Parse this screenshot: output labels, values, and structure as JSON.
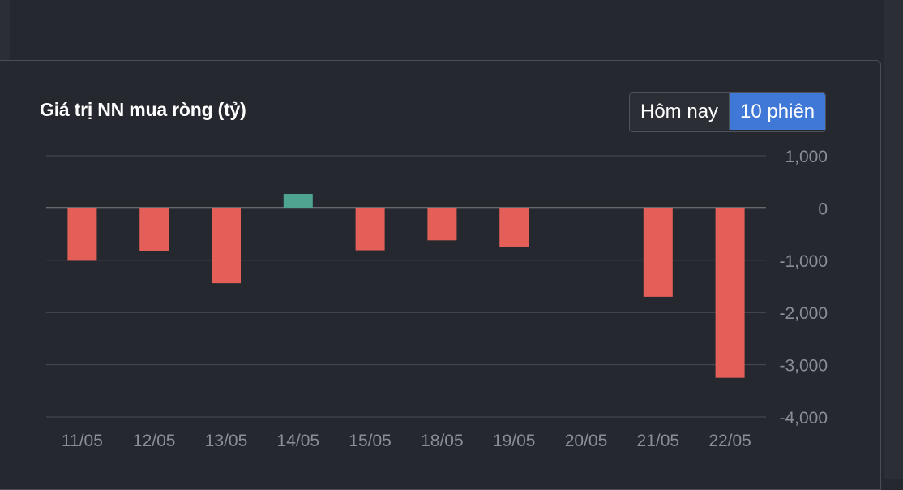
{
  "panel": {
    "title": "Giá trị NN mua ròng (tỷ)",
    "toggle": {
      "today_label": "Hôm nay",
      "sessions_label": "10 phiên",
      "selected": "10 phiên"
    }
  },
  "colors": {
    "positive": "#4fa391",
    "negative": "#e35f58",
    "active_button": "#3f78d6"
  },
  "chart_data": {
    "type": "bar",
    "title": "Giá trị NN mua ròng (tỷ)",
    "categories": [
      "11/05",
      "12/05",
      "13/05",
      "14/05",
      "15/05",
      "18/05",
      "19/05",
      "20/05",
      "21/05",
      "22/05"
    ],
    "values": [
      -1010,
      -830,
      -1440,
      270,
      -810,
      -620,
      -750,
      0,
      -1700,
      -3250
    ],
    "ylim": [
      -4000,
      1000
    ],
    "yticks": [
      1000,
      0,
      -1000,
      -2000,
      -3000,
      -4000
    ],
    "ytick_labels": [
      "1,000",
      "0",
      "-1,000",
      "-2,000",
      "-3,000",
      "-4,000"
    ],
    "grid": true,
    "legend": "none",
    "axis_position": "right"
  }
}
